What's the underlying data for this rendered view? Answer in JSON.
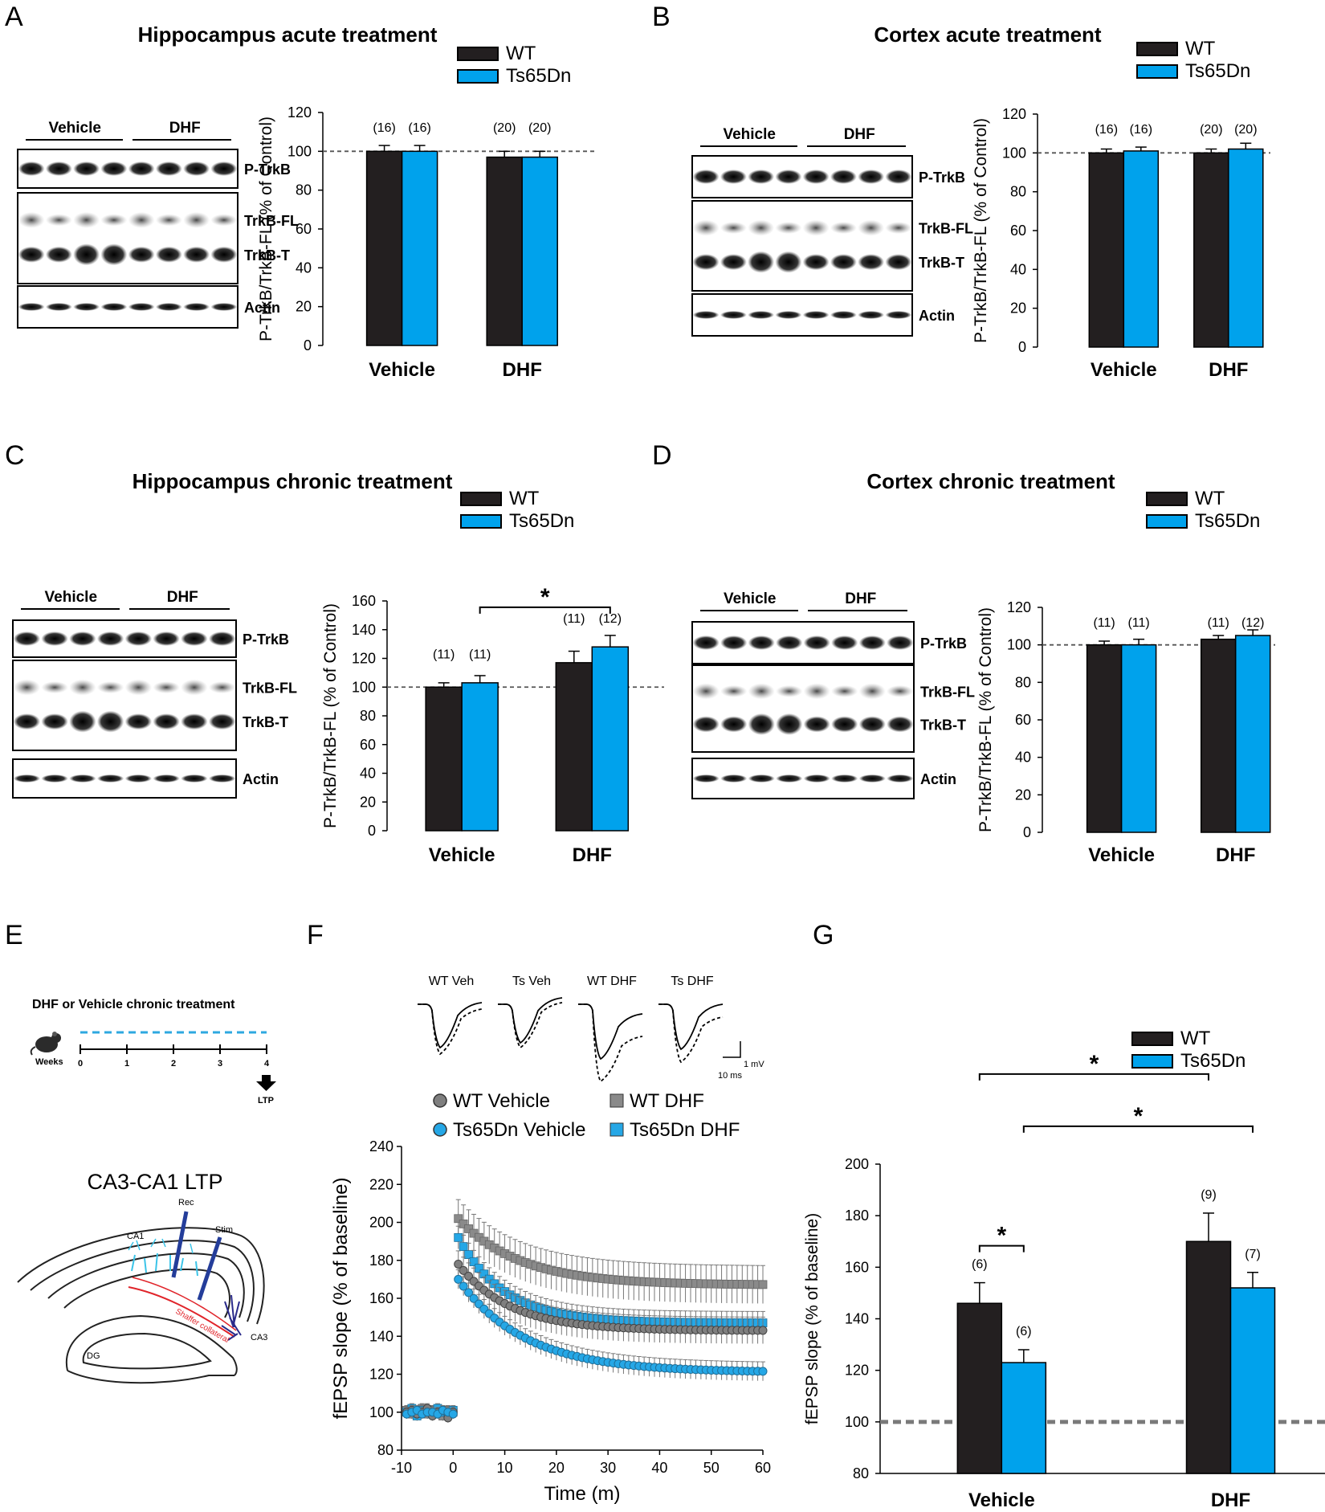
{
  "colors": {
    "wt": "#231f20",
    "ts": "#00a2ec",
    "wt_point": "#7f7f7f",
    "wt_dhf_point": "#8a8a8a",
    "ts_point": "#25a7e6",
    "slice_red": "#e0242a",
    "slice_blue": "#2a2a8a",
    "slice_cyan": "#3cc4e8"
  },
  "legend": {
    "wt": "WT",
    "ts": "Ts65Dn"
  },
  "panels": {
    "A": {
      "letter": "A",
      "title": "Hippocampus acute treatment"
    },
    "B": {
      "letter": "B",
      "title": "Cortex acute treatment"
    },
    "C": {
      "letter": "C",
      "title": "Hippocampus chronic treatment"
    },
    "D": {
      "letter": "D",
      "title": "Cortex chronic treatment"
    },
    "E": {
      "letter": "E"
    },
    "F": {
      "letter": "F"
    },
    "G": {
      "letter": "G"
    }
  },
  "blots": {
    "group_vehicle": "Vehicle",
    "group_dhf": "DHF",
    "lane_wt": "WT",
    "lane_ts": "Ts65Dn",
    "p_trkb": "P-TrkB",
    "trkb_fl": "TrkB-FL",
    "trkb_t": "TrkB-T",
    "actin": "Actin"
  },
  "panel_e": {
    "treatment_title": "DHF or Vehicle chronic treatment",
    "weeks_label": "Weeks",
    "week_ticks": [
      "0",
      "1",
      "2",
      "3",
      "4"
    ],
    "ltp_label": "LTP",
    "ltp_title": "CA3-CA1 LTP",
    "rec_label": "Rec",
    "stim_label": "Stim",
    "ca1_label": "CA1",
    "ca3_label": "CA3",
    "dg_label": "DG",
    "schaffer_label": "Shaffer collateral"
  },
  "panel_f": {
    "traces": [
      "WT Veh",
      "Ts Veh",
      "WT DHF",
      "Ts DHF"
    ],
    "scale_y": "1 mV",
    "scale_x": "10 ms",
    "legend": [
      "WT Vehicle",
      "WT DHF",
      "Ts65Dn Vehicle",
      "Ts65Dn DHF"
    ]
  },
  "chart_data": [
    {
      "id": "A",
      "type": "bar",
      "title": "Hippocampus acute treatment",
      "categories": [
        "Vehicle",
        "DHF"
      ],
      "ylabel": "P-TrkB/TrkB-FL (% of Control)",
      "ylim": [
        0,
        120
      ],
      "yticks": [
        0,
        20,
        40,
        60,
        80,
        100,
        120
      ],
      "reference_line": 100,
      "series": [
        {
          "name": "WT",
          "values": [
            100,
            97
          ],
          "errors": [
            3,
            3
          ],
          "n": [
            "(16)",
            "(20)"
          ]
        },
        {
          "name": "Ts65Dn",
          "values": [
            100,
            97
          ],
          "errors": [
            3,
            3
          ],
          "n": [
            "(16)",
            "(20)"
          ]
        }
      ]
    },
    {
      "id": "B",
      "type": "bar",
      "title": "Cortex acute treatment",
      "categories": [
        "Vehicle",
        "DHF"
      ],
      "ylabel": "P-TrkB/TrkB-FL (% of Control)",
      "ylim": [
        0,
        120
      ],
      "yticks": [
        0,
        20,
        40,
        60,
        80,
        100,
        120
      ],
      "reference_line": 100,
      "series": [
        {
          "name": "WT",
          "values": [
            100,
            100
          ],
          "errors": [
            2,
            2
          ],
          "n": [
            "(16)",
            "(20)"
          ]
        },
        {
          "name": "Ts65Dn",
          "values": [
            101,
            102
          ],
          "errors": [
            2,
            3
          ],
          "n": [
            "(16)",
            "(20)"
          ]
        }
      ]
    },
    {
      "id": "C",
      "type": "bar",
      "title": "Hippocampus chronic treatment",
      "categories": [
        "Vehicle",
        "DHF"
      ],
      "ylabel": "P-TrkB/TrkB-FL (% of Control)",
      "ylim": [
        0,
        160
      ],
      "yticks": [
        0,
        20,
        40,
        60,
        80,
        100,
        120,
        140,
        160
      ],
      "reference_line": 100,
      "series": [
        {
          "name": "WT",
          "values": [
            100,
            117
          ],
          "errors": [
            3,
            8
          ],
          "n": [
            "(11)",
            "(11)"
          ]
        },
        {
          "name": "Ts65Dn",
          "values": [
            103,
            128
          ],
          "errors": [
            5,
            8
          ],
          "n": [
            "(11)",
            "(12)"
          ]
        }
      ],
      "significance": [
        {
          "label": "*",
          "from": "Vehicle/Ts65Dn",
          "to": "DHF/Ts65Dn"
        }
      ]
    },
    {
      "id": "D",
      "type": "bar",
      "title": "Cortex chronic treatment",
      "categories": [
        "Vehicle",
        "DHF"
      ],
      "ylabel": "P-TrkB/TrkB-FL (% of Control)",
      "ylim": [
        0,
        120
      ],
      "yticks": [
        0,
        20,
        40,
        60,
        80,
        100,
        120
      ],
      "reference_line": 100,
      "series": [
        {
          "name": "WT",
          "values": [
            100,
            103
          ],
          "errors": [
            2,
            2
          ],
          "n": [
            "(11)",
            "(11)"
          ]
        },
        {
          "name": "Ts65Dn",
          "values": [
            100,
            105
          ],
          "errors": [
            3,
            3
          ],
          "n": [
            "(11)",
            "(12)"
          ]
        }
      ]
    },
    {
      "id": "F",
      "type": "scatter",
      "xlabel": "Time (m)",
      "ylabel": "fEPSP slope (% of baseline)",
      "xlim": [
        -10,
        60
      ],
      "ylim": [
        80,
        240
      ],
      "xticks": [
        -10,
        0,
        10,
        20,
        30,
        40,
        50,
        60
      ],
      "yticks": [
        80,
        100,
        120,
        140,
        160,
        180,
        200,
        220,
        240
      ],
      "baseline_x": [
        -9,
        -8,
        -7,
        -6,
        -5,
        -4,
        -3,
        -2,
        -1,
        0
      ],
      "series": [
        {
          "name": "WT Vehicle",
          "marker": "circle",
          "baseline": [
            100,
            101,
            99,
            100,
            102,
            98,
            100,
            101,
            97,
            100
          ],
          "post_peak": 178,
          "post_end": 143,
          "tau": 10,
          "error": 7
        },
        {
          "name": "WT DHF",
          "marker": "square",
          "baseline": [
            101,
            99,
            100,
            102,
            99,
            101,
            100,
            98,
            101,
            100
          ],
          "post_peak": 202,
          "post_end": 167,
          "tau": 12,
          "error": 10
        },
        {
          "name": "Ts65Dn Vehicle",
          "marker": "circle",
          "baseline": [
            99,
            100,
            101,
            99,
            100,
            100,
            99,
            101,
            100,
            99
          ],
          "post_peak": 170,
          "post_end": 121,
          "tau": 13,
          "error": 5
        },
        {
          "name": "Ts65Dn DHF",
          "marker": "square",
          "baseline": [
            100,
            102,
            98,
            101,
            100,
            99,
            102,
            100,
            99,
            101
          ],
          "post_peak": 192,
          "post_end": 147,
          "tau": 9,
          "error": 6
        }
      ]
    },
    {
      "id": "G",
      "type": "bar",
      "categories": [
        "Vehicle",
        "DHF"
      ],
      "ylabel": "fEPSP slope (% of baseline)",
      "ylim": [
        80,
        200
      ],
      "yticks": [
        80,
        100,
        120,
        140,
        160,
        180,
        200
      ],
      "reference_line": 100,
      "series": [
        {
          "name": "WT",
          "values": [
            146,
            170
          ],
          "errors": [
            8,
            11
          ],
          "n": [
            "(6)",
            "(9)"
          ]
        },
        {
          "name": "Ts65Dn",
          "values": [
            123,
            152
          ],
          "errors": [
            5,
            6
          ],
          "n": [
            "(6)",
            "(7)"
          ]
        }
      ],
      "significance": [
        {
          "label": "*",
          "from": "Vehicle/WT",
          "to": "Vehicle/Ts65Dn"
        },
        {
          "label": "*",
          "from": "Vehicle/WT",
          "to": "DHF/WT"
        },
        {
          "label": "*",
          "from": "Vehicle/Ts65Dn",
          "to": "DHF/Ts65Dn"
        }
      ]
    }
  ]
}
